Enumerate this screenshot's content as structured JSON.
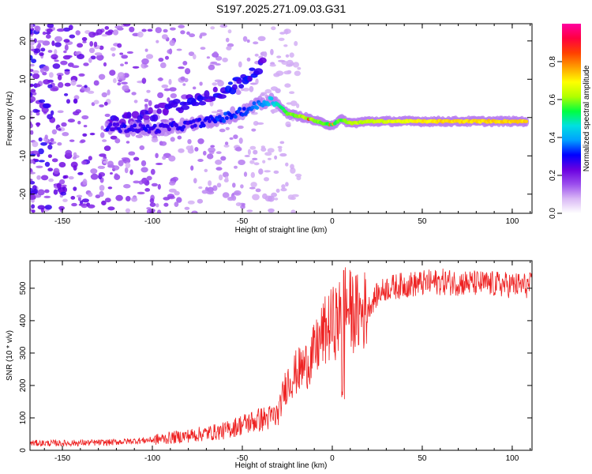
{
  "title": "S197.2025.271.09.03.G31",
  "chart_data": [
    {
      "type": "heatmap",
      "name": "spectrogram",
      "xlabel": "Height of straight line (km)",
      "ylabel": "Frequency (Hz)",
      "xlim": [
        -168,
        111
      ],
      "ylim": [
        -25,
        24.5
      ],
      "xticks": [
        -150,
        -100,
        -50,
        0,
        50,
        100
      ],
      "yticks": [
        -20,
        -10,
        0,
        10,
        20
      ],
      "colorbar": {
        "label": "Normalized spectral amplitude",
        "range": [
          0,
          1
        ],
        "ticks": [
          0.0,
          0.2,
          0.4,
          0.6,
          0.8
        ],
        "tick_labels": [
          "0.0",
          "0.2",
          "0.4",
          "0.6",
          "0.8"
        ],
        "colors": [
          "#ffffff",
          "#d9b8f5",
          "#9b4ded",
          "#6a00e0",
          "#0000ff",
          "#00a0ff",
          "#00e0e0",
          "#00ff40",
          "#b0ff00",
          "#ffff00",
          "#ffa000",
          "#ff4000",
          "#ff0040",
          "#ff00a0"
        ]
      },
      "main_ridge": [
        {
          "x": -125,
          "y": -2.5,
          "a": 0.25
        },
        {
          "x": -100,
          "y": -3,
          "a": 0.25
        },
        {
          "x": -80,
          "y": -2,
          "a": 0.25
        },
        {
          "x": -60,
          "y": 0,
          "a": 0.3
        },
        {
          "x": -50,
          "y": 1.5,
          "a": 0.3
        },
        {
          "x": -40,
          "y": 3.5,
          "a": 0.35
        },
        {
          "x": -35,
          "y": 4.5,
          "a": 0.4
        },
        {
          "x": -30,
          "y": 3.5,
          "a": 0.45
        },
        {
          "x": -25,
          "y": 1.0,
          "a": 0.55
        },
        {
          "x": -15,
          "y": 0.0,
          "a": 0.6
        },
        {
          "x": -5,
          "y": -1.5,
          "a": 0.55
        },
        {
          "x": 0,
          "y": -2.0,
          "a": 0.5
        },
        {
          "x": 5,
          "y": -0.5,
          "a": 0.55
        },
        {
          "x": 10,
          "y": -1.5,
          "a": 0.6
        },
        {
          "x": 20,
          "y": -1.0,
          "a": 0.6
        },
        {
          "x": 40,
          "y": -1.0,
          "a": 0.65
        },
        {
          "x": 60,
          "y": -1.0,
          "a": 0.7
        },
        {
          "x": 80,
          "y": -1.0,
          "a": 0.7
        },
        {
          "x": 108,
          "y": -1.0,
          "a": 0.7
        }
      ],
      "upper_ridge": [
        {
          "x": -125,
          "y": -2,
          "a": 0.2
        },
        {
          "x": -100,
          "y": 1,
          "a": 0.2
        },
        {
          "x": -80,
          "y": 4,
          "a": 0.22
        },
        {
          "x": -65,
          "y": 6,
          "a": 0.22
        },
        {
          "x": -55,
          "y": 8,
          "a": 0.25
        },
        {
          "x": -45,
          "y": 11,
          "a": 0.25
        },
        {
          "x": -40,
          "y": 14,
          "a": 0.22
        }
      ]
    },
    {
      "type": "line",
      "name": "snr",
      "xlabel": "Height of straight line (km)",
      "ylabel": "SNR (10 * v/v)",
      "xlim": [
        -168,
        111
      ],
      "ylim": [
        0,
        585
      ],
      "xticks": [
        -150,
        -100,
        -50,
        0,
        50,
        100
      ],
      "yticks": [
        0,
        100,
        200,
        300,
        400,
        500
      ],
      "color": "#ee2222",
      "series": [
        {
          "name": "SNR",
          "x": [
            -168,
            -150,
            -125,
            -100,
            -80,
            -60,
            -50,
            -40,
            -35,
            -30,
            -27,
            -25,
            -20,
            -15,
            -10,
            -5,
            0,
            5,
            7,
            10,
            15,
            20,
            25,
            30,
            40,
            50,
            60,
            80,
            100,
            111
          ],
          "values": [
            22,
            22,
            24,
            32,
            45,
            60,
            80,
            95,
            100,
            110,
            180,
            210,
            240,
            260,
            300,
            360,
            390,
            410,
            450,
            430,
            420,
            440,
            480,
            500,
            510,
            515,
            520,
            515,
            510,
            508
          ]
        }
      ]
    }
  ]
}
